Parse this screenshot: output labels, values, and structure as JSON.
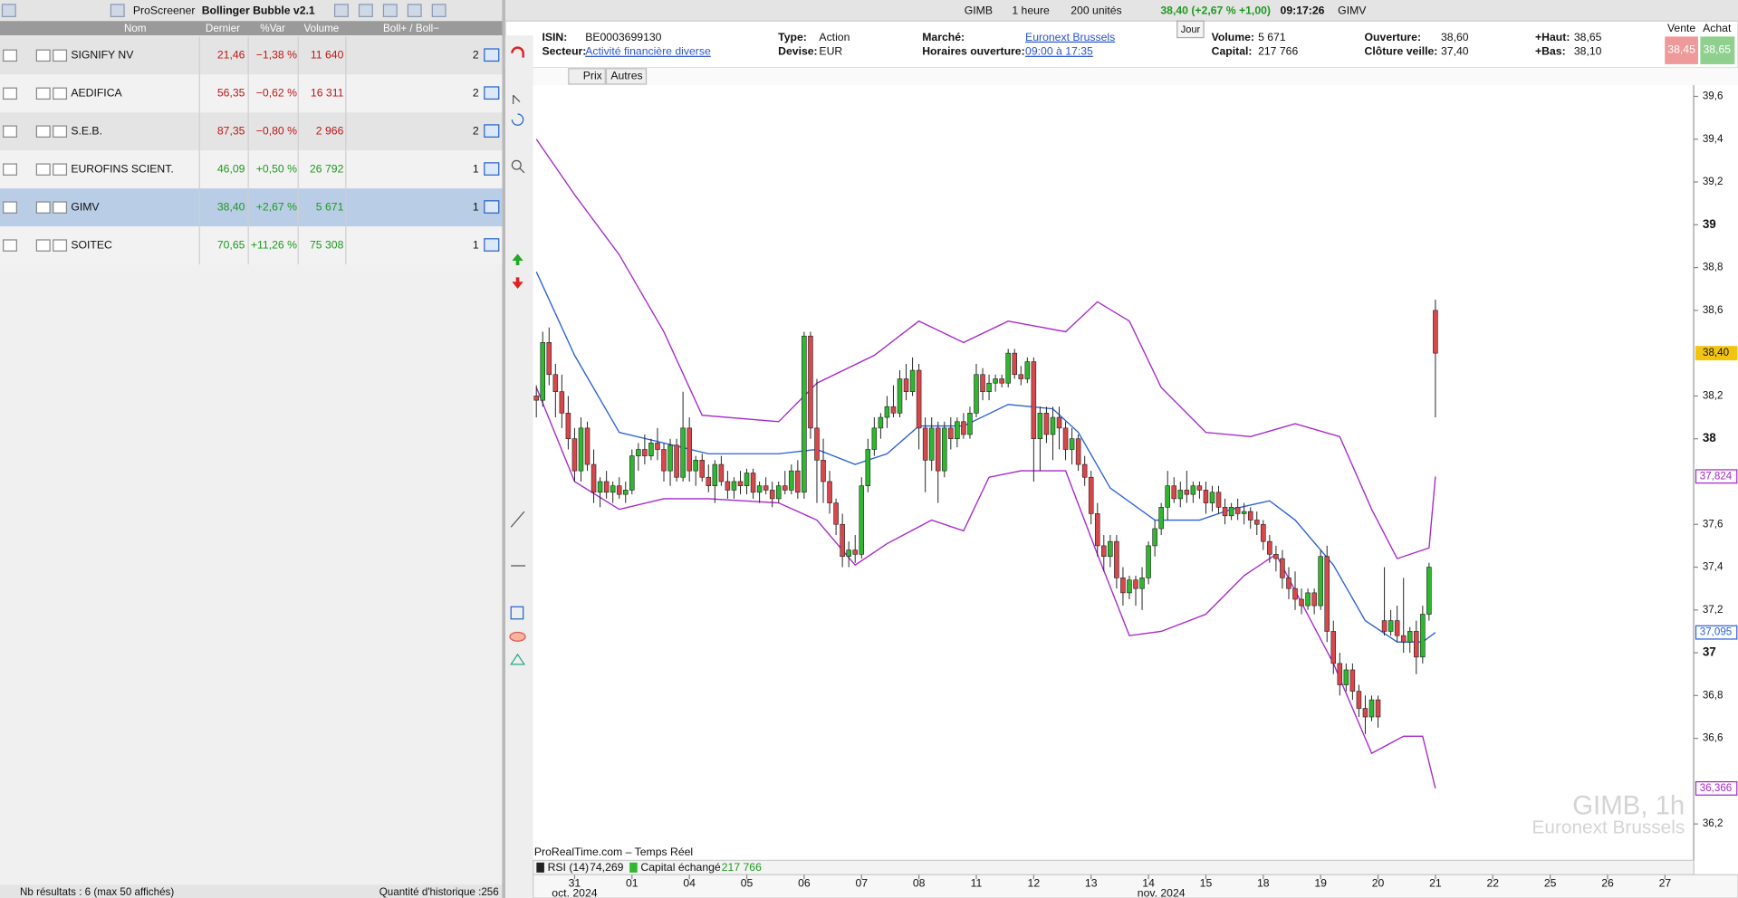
{
  "screener": {
    "title": "ProScreener",
    "list": "Bollinger Bubble v2.1",
    "columns": [
      "Nom",
      "Dernier",
      "%Var",
      "Volume",
      "Boll+ / Boll−"
    ],
    "rows": [
      [
        "SIGNIFY NV",
        "21,46",
        "−1,38 %",
        "11 640",
        "2"
      ],
      [
        "AEDIFICA",
        "56,35",
        "−0,62 %",
        "16 311",
        "2"
      ],
      [
        "S.E.B.",
        "87,35",
        "−0,80 %",
        "2 966",
        "2"
      ],
      [
        "EUROFINS SCIENT.",
        "46,09",
        "+0,50 %",
        "26 792",
        "1"
      ],
      [
        "GIMV",
        "38,40",
        "+2,67 %",
        "5 671",
        "1"
      ],
      [
        "SOITEC",
        "70,65",
        "+11,26 %",
        "75 308",
        "1"
      ]
    ],
    "selected": 4,
    "footer": "Nb résultats : 6 (max 50 affichés)",
    "history": "Quantité d'historique :256"
  },
  "toolbar": {
    "ticker": "GIMB",
    "timeframe": "1 heure",
    "units": "200 unités",
    "quote": "38,40 (+2,67 % +1,00)",
    "time": "09:17:26",
    "name": "GIMV"
  },
  "info": {
    "fields": [
      {
        "label": "ISIN:",
        "value": "BE0003699130"
      },
      {
        "label": "Secteur:",
        "value": "Activité financière diverse",
        "link": true
      },
      {
        "label": "Type:",
        "value": "Action"
      },
      {
        "label": "Devise:",
        "value": "EUR"
      },
      {
        "label": "Marché:",
        "value": "Euronext Brussels",
        "link": true
      },
      {
        "label": "Horaires ouverture:",
        "value": "09:00 à 17:35",
        "link": true
      },
      {
        "label": "Volume:",
        "value": "5 671"
      },
      {
        "label": "Capital:",
        "value": "217 766"
      },
      {
        "label": "Ouverture:",
        "value": "38,60"
      },
      {
        "label": "Clôture veille:",
        "value": "37,40"
      },
      {
        "label": "+Haut:",
        "value": "38,65"
      },
      {
        "label": "+Bas:",
        "value": "38,10"
      }
    ],
    "day_button": "Jour",
    "sell_label": "Vente",
    "buy_label": "Achat",
    "sell": "38,45",
    "buy": "38,65"
  },
  "chart_toolbar": [
    "Prix",
    "Autres"
  ],
  "chart_data": {
    "type": "candlestick",
    "source": "ProRealTime.com – Temps Réel",
    "watermark": [
      "GIMB, 1h",
      "Euronext Brussels"
    ],
    "up_color": "#2db82d",
    "down_color": "#d9474b",
    "xlim": [
      -0.5,
      181.5
    ],
    "ylim": [
      36.035,
      39.652
    ],
    "yticks": [
      {
        "value": 39.6,
        "label": "39,6"
      },
      {
        "value": 39.4,
        "label": "39,4"
      },
      {
        "value": 39.2,
        "label": "39,2"
      },
      39,
      {
        "value": 38.8,
        "label": "38,8"
      },
      {
        "value": 38.6,
        "label": "38,6"
      },
      {
        "value": 38.2,
        "label": "38,2"
      },
      38,
      {
        "value": 37.6,
        "label": "37,6"
      },
      {
        "value": 37.4,
        "label": "37,4"
      },
      {
        "value": 37.2,
        "label": "37,2"
      },
      37,
      {
        "value": 36.8,
        "label": "36,8"
      },
      {
        "value": 36.6,
        "label": "36,6"
      },
      {
        "value": 36.2,
        "label": "36,2"
      }
    ],
    "xticks": [
      {
        "value": 6,
        "label": "31"
      },
      {
        "value": 15,
        "label": "01"
      },
      {
        "value": 24,
        "label": "04"
      },
      {
        "value": 33,
        "label": "05"
      },
      {
        "value": 42,
        "label": "06"
      },
      {
        "value": 51,
        "label": "07"
      },
      {
        "value": 60,
        "label": "08"
      },
      {
        "value": 69,
        "label": "11"
      },
      {
        "value": 78,
        "label": "12"
      },
      {
        "value": 87,
        "label": "13"
      },
      {
        "value": 96,
        "label": "14"
      },
      {
        "value": 105,
        "label": "15"
      },
      {
        "value": 114,
        "label": "18"
      },
      {
        "value": 123,
        "label": "19"
      },
      {
        "value": 132,
        "label": "20"
      },
      {
        "value": 141,
        "label": "21"
      },
      {
        "value": 150,
        "label": "22"
      },
      {
        "value": 159,
        "label": "25"
      },
      {
        "value": 168,
        "label": "26"
      },
      {
        "value": 177,
        "label": "27"
      }
    ],
    "period_labels": [
      {
        "value": 6,
        "label": "oct. 2024"
      },
      {
        "value": 98,
        "label": "nov. 2024"
      }
    ],
    "ohlc": [
      [
        38.2,
        38.25,
        38.1,
        38.18
      ],
      [
        38.18,
        38.5,
        38.15,
        38.45
      ],
      [
        38.45,
        38.52,
        38.25,
        38.3
      ],
      [
        38.3,
        38.35,
        38.1,
        38.22
      ],
      [
        38.22,
        38.3,
        38.05,
        38.12
      ],
      [
        38.12,
        38.2,
        37.95,
        38.0
      ],
      [
        38.0,
        38.05,
        37.8,
        37.85
      ],
      [
        37.85,
        38.1,
        37.8,
        38.05
      ],
      [
        38.05,
        38.08,
        37.85,
        37.88
      ],
      [
        37.88,
        37.95,
        37.7,
        37.75
      ],
      [
        37.75,
        37.82,
        37.68,
        37.8
      ],
      [
        37.8,
        37.85,
        37.72,
        37.75
      ],
      [
        37.75,
        37.8,
        37.7,
        37.78
      ],
      [
        37.78,
        37.82,
        37.72,
        37.74
      ],
      [
        37.74,
        37.8,
        37.7,
        37.76
      ],
      [
        37.76,
        37.95,
        37.74,
        37.92
      ],
      [
        37.92,
        37.98,
        37.85,
        37.95
      ],
      [
        37.95,
        38.02,
        37.88,
        37.92
      ],
      [
        37.92,
        38.0,
        37.9,
        37.98
      ],
      [
        37.98,
        38.05,
        37.9,
        37.95
      ],
      [
        37.95,
        37.98,
        37.8,
        37.85
      ],
      [
        37.85,
        38.0,
        37.78,
        37.97
      ],
      [
        37.97,
        38.0,
        37.8,
        37.82
      ],
      [
        37.82,
        38.22,
        37.8,
        38.05
      ],
      [
        38.05,
        38.1,
        37.8,
        37.85
      ],
      [
        37.85,
        37.92,
        37.78,
        37.9
      ],
      [
        37.9,
        37.93,
        37.8,
        37.82
      ],
      [
        37.82,
        37.88,
        37.75,
        37.78
      ],
      [
        37.78,
        37.9,
        37.7,
        37.88
      ],
      [
        37.88,
        37.92,
        37.78,
        37.8
      ],
      [
        37.8,
        37.85,
        37.72,
        37.76
      ],
      [
        37.76,
        37.82,
        37.72,
        37.8
      ],
      [
        37.8,
        37.85,
        37.74,
        37.78
      ],
      [
        37.78,
        37.86,
        37.74,
        37.84
      ],
      [
        37.84,
        37.86,
        37.72,
        37.75
      ],
      [
        37.75,
        37.8,
        37.7,
        37.78
      ],
      [
        37.78,
        37.82,
        37.74,
        37.76
      ],
      [
        37.76,
        37.8,
        37.68,
        37.72
      ],
      [
        37.72,
        37.8,
        37.7,
        37.78
      ],
      [
        37.78,
        37.85,
        37.74,
        37.76
      ],
      [
        37.76,
        37.88,
        37.74,
        37.85
      ],
      [
        37.85,
        37.9,
        37.72,
        37.75
      ],
      [
        37.75,
        38.5,
        37.72,
        38.48
      ],
      [
        38.48,
        38.5,
        38.0,
        38.05
      ],
      [
        38.05,
        38.28,
        37.7,
        37.9
      ],
      [
        37.9,
        38.0,
        37.7,
        37.8
      ],
      [
        37.8,
        37.85,
        37.65,
        37.7
      ],
      [
        37.7,
        37.72,
        37.55,
        37.6
      ],
      [
        37.6,
        37.65,
        37.4,
        37.45
      ],
      [
        37.45,
        37.52,
        37.4,
        37.48
      ],
      [
        37.48,
        37.55,
        37.42,
        37.46
      ],
      [
        37.46,
        37.82,
        37.44,
        37.78
      ],
      [
        37.78,
        38.0,
        37.75,
        37.95
      ],
      [
        37.95,
        38.1,
        37.92,
        38.05
      ],
      [
        38.05,
        38.12,
        38.0,
        38.1
      ],
      [
        38.1,
        38.2,
        38.05,
        38.15
      ],
      [
        38.15,
        38.25,
        38.1,
        38.12
      ],
      [
        38.12,
        38.32,
        38.1,
        38.28
      ],
      [
        38.28,
        38.35,
        38.18,
        38.22
      ],
      [
        38.22,
        38.38,
        38.2,
        38.32
      ],
      [
        38.32,
        38.35,
        37.95,
        38.05
      ],
      [
        38.05,
        38.1,
        37.75,
        37.9
      ],
      [
        37.9,
        38.1,
        37.85,
        38.05
      ],
      [
        38.05,
        38.08,
        37.7,
        37.85
      ],
      [
        37.85,
        38.08,
        37.82,
        38.05
      ],
      [
        38.05,
        38.1,
        37.95,
        38.0
      ],
      [
        38.0,
        38.1,
        37.96,
        38.08
      ],
      [
        38.08,
        38.12,
        38.0,
        38.02
      ],
      [
        38.02,
        38.15,
        38.0,
        38.12
      ],
      [
        38.12,
        38.35,
        38.1,
        38.3
      ],
      [
        38.3,
        38.33,
        38.18,
        38.22
      ],
      [
        38.22,
        38.3,
        38.18,
        38.26
      ],
      [
        38.26,
        38.3,
        38.22,
        38.28
      ],
      [
        38.28,
        38.3,
        38.24,
        38.26
      ],
      [
        38.26,
        38.42,
        38.24,
        38.4
      ],
      [
        38.4,
        38.42,
        38.28,
        38.3
      ],
      [
        38.3,
        38.34,
        38.25,
        38.28
      ],
      [
        38.28,
        38.38,
        38.26,
        38.36
      ],
      [
        38.36,
        38.38,
        37.8,
        38.0
      ],
      [
        38.0,
        38.15,
        37.85,
        38.12
      ],
      [
        38.12,
        38.15,
        37.98,
        38.02
      ],
      [
        38.02,
        38.15,
        37.9,
        38.1
      ],
      [
        38.1,
        38.15,
        37.95,
        38.05
      ],
      [
        38.05,
        38.08,
        37.9,
        37.95
      ],
      [
        37.95,
        38.05,
        37.88,
        38.0
      ],
      [
        38.0,
        38.02,
        37.85,
        37.88
      ],
      [
        37.88,
        37.92,
        37.78,
        37.82
      ],
      [
        37.82,
        37.85,
        37.6,
        37.65
      ],
      [
        37.65,
        37.7,
        37.45,
        37.5
      ],
      [
        37.5,
        37.55,
        37.38,
        37.45
      ],
      [
        37.45,
        37.55,
        37.4,
        37.52
      ],
      [
        37.52,
        37.55,
        37.3,
        37.35
      ],
      [
        37.35,
        37.4,
        37.22,
        37.28
      ],
      [
        37.28,
        37.36,
        37.25,
        37.34
      ],
      [
        37.34,
        37.36,
        37.22,
        37.3
      ],
      [
        37.3,
        37.4,
        37.2,
        37.35
      ],
      [
        37.35,
        37.52,
        37.32,
        37.5
      ],
      [
        37.5,
        37.62,
        37.45,
        37.58
      ],
      [
        37.58,
        37.7,
        37.55,
        37.68
      ],
      [
        37.68,
        37.85,
        37.62,
        37.78
      ],
      [
        37.78,
        37.82,
        37.7,
        37.72
      ],
      [
        37.72,
        37.8,
        37.68,
        37.76
      ],
      [
        37.76,
        37.85,
        37.7,
        37.74
      ],
      [
        37.74,
        37.8,
        37.7,
        37.78
      ],
      [
        37.78,
        37.8,
        37.72,
        37.76
      ],
      [
        37.76,
        37.8,
        37.65,
        37.7
      ],
      [
        37.7,
        37.78,
        37.66,
        37.75
      ],
      [
        37.75,
        37.78,
        37.65,
        37.68
      ],
      [
        37.68,
        37.72,
        37.6,
        37.64
      ],
      [
        37.64,
        37.7,
        37.62,
        37.68
      ],
      [
        37.68,
        37.72,
        37.62,
        37.65
      ],
      [
        37.65,
        37.7,
        37.6,
        37.66
      ],
      [
        37.66,
        37.68,
        37.58,
        37.62
      ],
      [
        37.62,
        37.66,
        37.55,
        37.6
      ],
      [
        37.6,
        37.62,
        37.48,
        37.52
      ],
      [
        37.52,
        37.55,
        37.42,
        37.46
      ],
      [
        37.46,
        37.5,
        37.38,
        37.44
      ],
      [
        37.44,
        37.48,
        37.3,
        37.35
      ],
      [
        37.35,
        37.4,
        37.25,
        37.3
      ],
      [
        37.3,
        37.38,
        37.2,
        37.25
      ],
      [
        37.25,
        37.3,
        37.18,
        37.22
      ],
      [
        37.22,
        37.3,
        37.2,
        37.28
      ],
      [
        37.28,
        37.3,
        37.18,
        37.22
      ],
      [
        37.22,
        37.48,
        37.2,
        37.45
      ],
      [
        37.45,
        37.5,
        37.05,
        37.1
      ],
      [
        37.1,
        37.15,
        36.9,
        36.95
      ],
      [
        36.95,
        37.0,
        36.8,
        36.85
      ],
      [
        36.85,
        36.95,
        36.82,
        36.92
      ],
      [
        36.92,
        36.95,
        36.78,
        36.82
      ],
      [
        36.82,
        36.85,
        36.7,
        36.74
      ],
      [
        36.74,
        36.8,
        36.62,
        36.7
      ],
      [
        36.7,
        36.8,
        36.68,
        36.78
      ],
      [
        36.78,
        36.8,
        36.65,
        36.7
      ],
      [
        37.15,
        37.4,
        37.08,
        37.1
      ],
      [
        37.1,
        37.2,
        37.08,
        37.15
      ],
      [
        37.15,
        37.22,
        37.05,
        37.08
      ],
      [
        37.08,
        37.35,
        37.0,
        37.05
      ],
      [
        37.05,
        37.12,
        37.0,
        37.1
      ],
      [
        37.1,
        37.15,
        36.9,
        36.98
      ],
      [
        36.98,
        37.22,
        36.95,
        37.18
      ],
      [
        37.18,
        37.42,
        37.15,
        37.4
      ],
      [
        38.6,
        38.65,
        38.1,
        38.4
      ]
    ],
    "bands": [
      {
        "color": "#a626c9",
        "x": [
          0,
          6,
          13,
          20,
          26,
          38,
          44,
          53,
          60,
          67,
          74,
          83,
          88,
          93,
          98,
          105,
          112,
          119,
          126,
          131,
          135,
          140,
          141
        ],
        "values": [
          39.4,
          39.14,
          38.86,
          38.5,
          38.11,
          38.08,
          38.26,
          38.39,
          38.55,
          38.45,
          38.55,
          38.5,
          38.64,
          38.55,
          38.24,
          38.03,
          38.01,
          38.07,
          38.01,
          37.67,
          37.44,
          37.49,
          37.824
        ]
      },
      {
        "color": "#2a5fd8",
        "x": [
          0,
          6,
          13,
          20,
          27,
          38,
          44,
          50,
          55,
          60,
          67,
          74,
          81,
          85,
          90,
          97,
          104,
          109,
          115,
          119,
          125,
          130,
          135,
          139,
          141
        ],
        "values": [
          38.78,
          38.39,
          38.03,
          37.98,
          37.93,
          37.93,
          37.95,
          37.88,
          37.93,
          38.06,
          38.06,
          38.16,
          38.14,
          38.03,
          37.77,
          37.62,
          37.62,
          37.67,
          37.71,
          37.62,
          37.41,
          37.15,
          37.05,
          37.05,
          37.095
        ]
      },
      {
        "color": "#a626c9",
        "x": [
          0,
          6,
          13,
          20,
          27,
          38,
          44,
          50,
          55,
          62,
          67,
          71,
          76,
          83,
          88,
          93,
          98,
          105,
          111,
          116,
          125,
          131,
          136,
          139,
          141
        ],
        "values": [
          38.24,
          37.8,
          37.67,
          37.72,
          37.72,
          37.7,
          37.62,
          37.41,
          37.51,
          37.62,
          37.57,
          37.82,
          37.85,
          37.85,
          37.46,
          37.08,
          37.1,
          37.18,
          37.36,
          37.46,
          36.95,
          36.53,
          36.61,
          36.61,
          36.366
        ]
      }
    ],
    "price_tags": [
      {
        "value": 38.4,
        "label": "38,40",
        "color": "#f2c40f"
      },
      {
        "value": 37.824,
        "label": "37,824",
        "color": "#a626c9"
      },
      {
        "value": 37.095,
        "label": "37,095",
        "color": "#2a5fd8"
      },
      {
        "value": 36.366,
        "label": "36,366",
        "color": "#a626c9"
      }
    ],
    "indicators": {
      "rsi_label": "RSI (14)",
      "rsi": "74,269",
      "capital_label": "Capital échangé",
      "capital": "217 766"
    }
  }
}
